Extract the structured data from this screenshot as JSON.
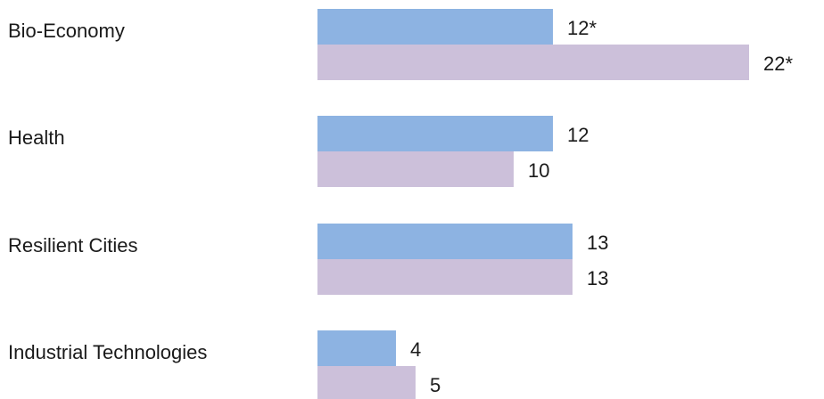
{
  "chart_data": {
    "type": "bar",
    "orientation": "horizontal",
    "categories": [
      "Bio-Economy",
      "Health",
      "Resilient Cities",
      "Industrial Technologies"
    ],
    "series": [
      {
        "values": [
          12,
          12,
          13,
          4
        ],
        "labels": [
          "12*",
          "12",
          "13",
          "4"
        ],
        "color": "#8db3e2"
      },
      {
        "values": [
          22,
          10,
          13,
          5
        ],
        "labels": [
          "22*",
          "10",
          "13",
          "5"
        ],
        "color": "#ccc0da"
      }
    ],
    "xlim": [
      0,
      22
    ],
    "grid": false,
    "legend": "none"
  }
}
